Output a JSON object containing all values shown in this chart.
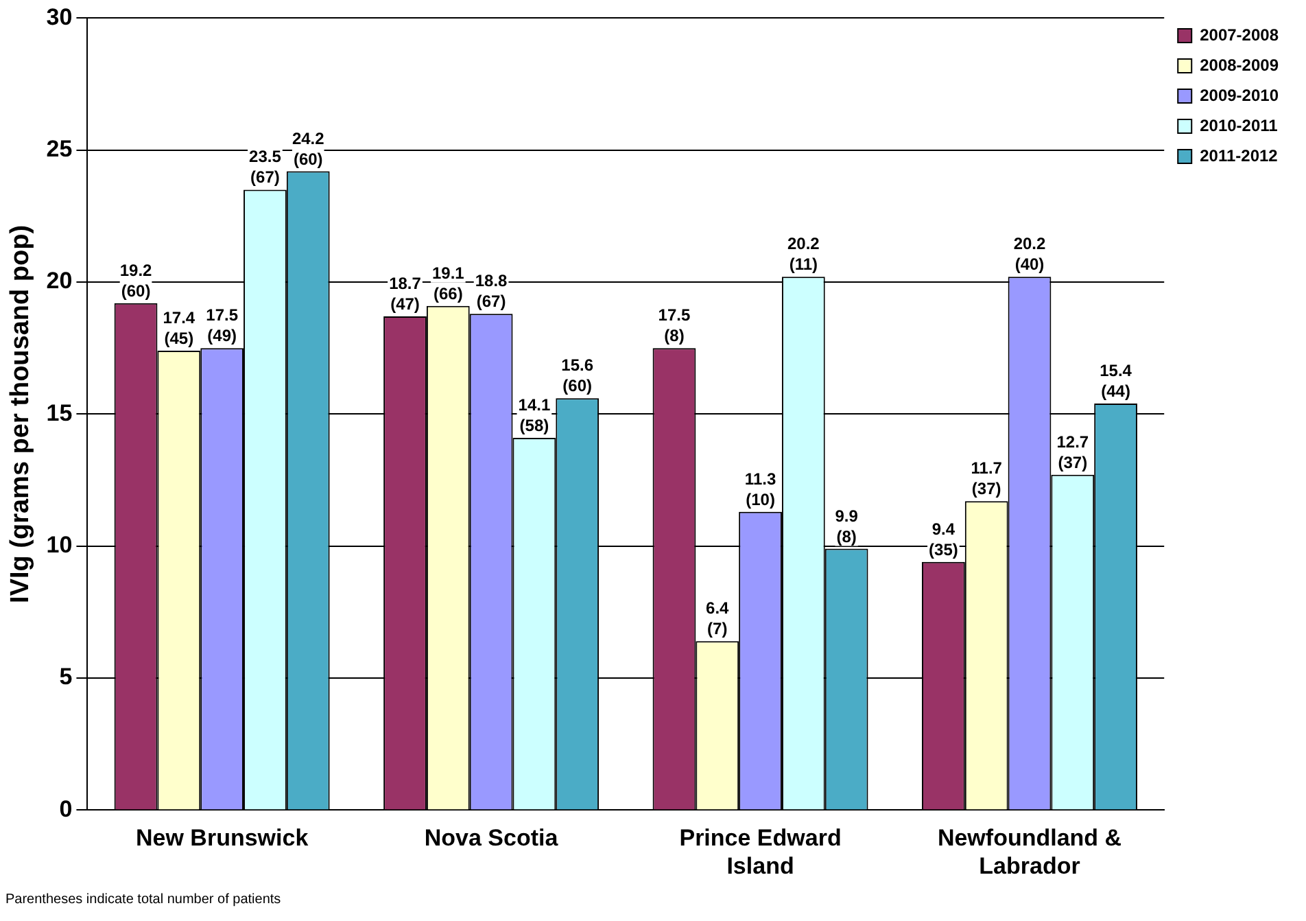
{
  "chart_data": {
    "type": "bar",
    "ylabel": "IVIg (grams per thousand pop)",
    "categories": [
      "New Brunswick",
      "Nova Scotia",
      "Prince Edward Island",
      "Newfoundland & Labrador"
    ],
    "series": [
      {
        "name": "2007-2008",
        "color": "#993366",
        "values": [
          19.2,
          18.7,
          17.5,
          9.4
        ],
        "value_labels": [
          "19.2\n(60)",
          "18.7\n(47)",
          "17.5\n(8)",
          "9.4\n(35)"
        ]
      },
      {
        "name": "2008-2009",
        "color": "#ffffcc",
        "values": [
          17.4,
          19.1,
          6.4,
          11.7
        ],
        "value_labels": [
          "17.4\n(45)",
          "19.1\n(66)",
          "6.4\n(7)",
          "11.7\n(37)"
        ]
      },
      {
        "name": "2009-2010",
        "color": "#9999ff",
        "values": [
          17.5,
          18.8,
          11.3,
          20.2
        ],
        "value_labels": [
          "17.5\n(49)",
          "18.8\n(67)",
          "11.3\n(10)",
          "20.2\n(40)"
        ]
      },
      {
        "name": "2010-2011",
        "color": "#ccffff",
        "values": [
          23.5,
          14.1,
          20.2,
          12.7
        ],
        "value_labels": [
          "23.5\n(67)",
          "14.1\n(58)",
          "20.2\n(11)",
          "12.7\n(37)"
        ]
      },
      {
        "name": "2011-2012",
        "color": "#4bacc6",
        "values": [
          24.2,
          15.6,
          9.9,
          15.4
        ],
        "value_labels": [
          "24.2\n(60)",
          "15.6\n(60)",
          "9.9\n(8)",
          "15.4\n(44)"
        ]
      }
    ],
    "ylim": [
      0,
      30
    ],
    "yticks": [
      0,
      5,
      10,
      15,
      20,
      25,
      30
    ],
    "grid": "y",
    "legend": "top right",
    "annotations": [
      "Parentheses indicate total number of patients"
    ]
  }
}
